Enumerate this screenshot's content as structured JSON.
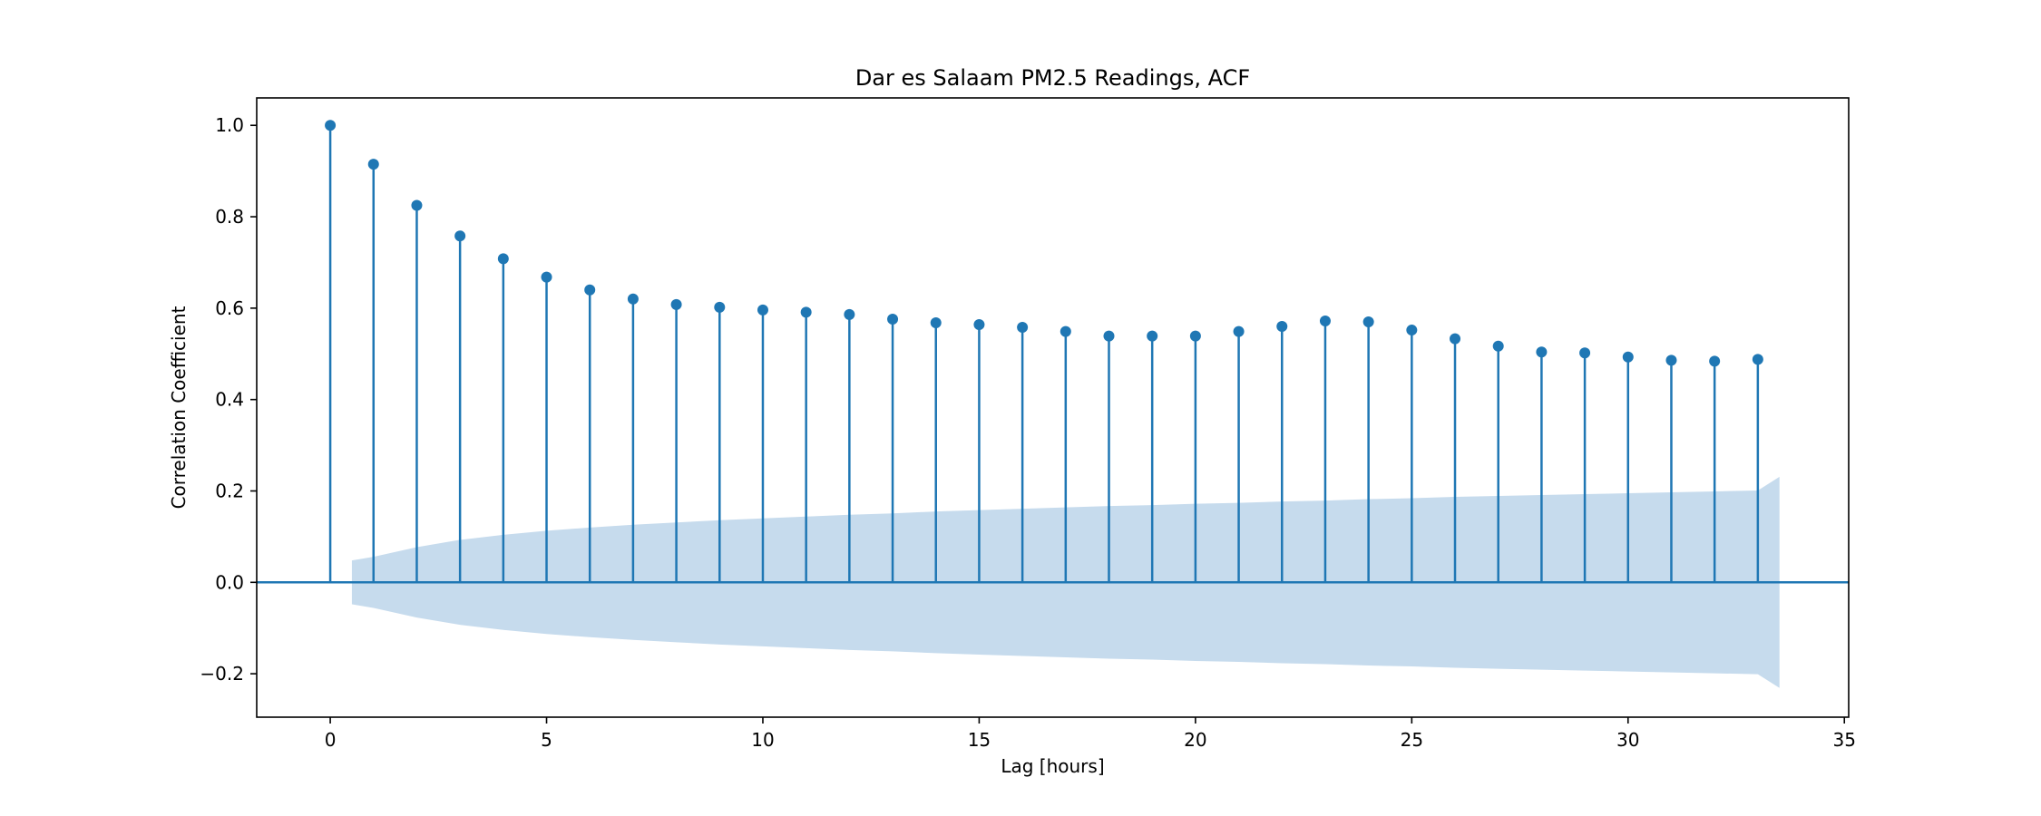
{
  "chart_data": {
    "type": "stem",
    "title": "Dar es Salaam PM2.5 Readings, ACF",
    "xlabel": "Lag [hours]",
    "ylabel": "Correlation Coefficient",
    "xlim": [
      -1.7,
      35.1
    ],
    "ylim": [
      -0.295,
      1.06
    ],
    "xticks": [
      0,
      5,
      10,
      15,
      20,
      25,
      30,
      35
    ],
    "yticks": [
      -0.2,
      0.0,
      0.2,
      0.4,
      0.6,
      0.8,
      1.0
    ],
    "xtick_labels": [
      "0",
      "5",
      "10",
      "15",
      "20",
      "25",
      "30",
      "35"
    ],
    "ytick_labels": [
      "−0.2",
      "0.0",
      "0.2",
      "0.4",
      "0.6",
      "0.8",
      "1.0"
    ],
    "grid": false,
    "colors": {
      "stem": "#1f77b4",
      "band": "#c6dbed",
      "zero_line": "#1f77b4"
    },
    "lags": [
      0,
      1,
      2,
      3,
      4,
      5,
      6,
      7,
      8,
      9,
      10,
      11,
      12,
      13,
      14,
      15,
      16,
      17,
      18,
      19,
      20,
      21,
      22,
      23,
      24,
      25,
      26,
      27,
      28,
      29,
      30,
      31,
      32,
      33
    ],
    "acf": [
      1.0,
      0.915,
      0.825,
      0.758,
      0.708,
      0.668,
      0.64,
      0.62,
      0.608,
      0.602,
      0.596,
      0.591,
      0.586,
      0.576,
      0.568,
      0.564,
      0.558,
      0.549,
      0.539,
      0.539,
      0.539,
      0.549,
      0.56,
      0.572,
      0.57,
      0.552,
      0.533,
      0.517,
      0.504,
      0.502,
      0.493,
      0.486,
      0.484,
      0.488
    ],
    "confidence_band": {
      "x": [
        0.5,
        1,
        2,
        3,
        4,
        5,
        6,
        7,
        8,
        9,
        10,
        11,
        12,
        13,
        14,
        15,
        16,
        17,
        18,
        19,
        20,
        21,
        22,
        23,
        24,
        25,
        26,
        27,
        28,
        29,
        30,
        31,
        32,
        33,
        33.5
      ],
      "upper": [
        0.048,
        0.056,
        0.077,
        0.093,
        0.104,
        0.113,
        0.12,
        0.126,
        0.131,
        0.136,
        0.14,
        0.144,
        0.148,
        0.151,
        0.155,
        0.158,
        0.161,
        0.164,
        0.167,
        0.169,
        0.172,
        0.174,
        0.177,
        0.179,
        0.182,
        0.184,
        0.187,
        0.189,
        0.191,
        0.193,
        0.195,
        0.197,
        0.199,
        0.201,
        0.231
      ]
    }
  }
}
